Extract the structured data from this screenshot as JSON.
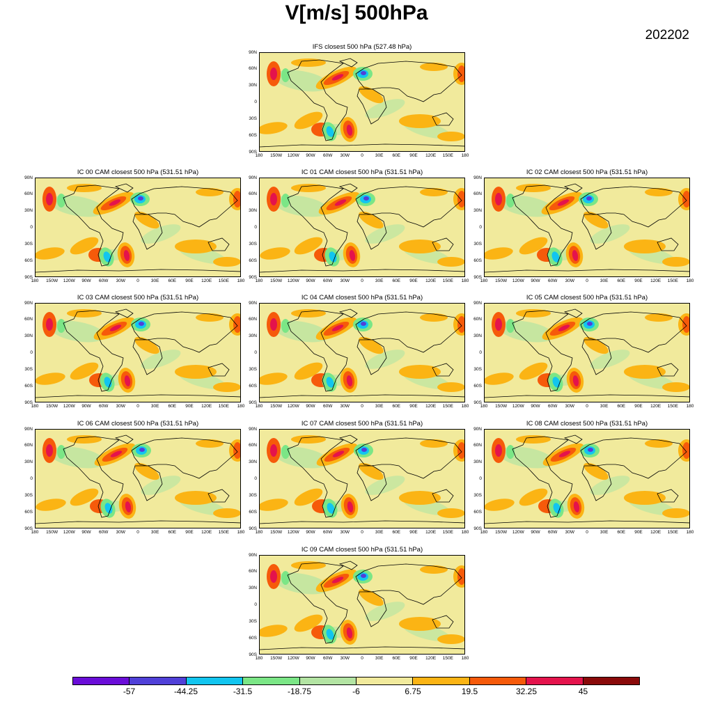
{
  "title": "V[m/s] 500hPa",
  "date": "202202",
  "panels": [
    {
      "id": "ifs",
      "title": "IFS closest 500 hPa (527.48 hPa)"
    },
    {
      "id": "ic00",
      "title": "IC 00 CAM closest 500 hPa (531.51 hPa)"
    },
    {
      "id": "ic01",
      "title": "IC 01 CAM closest 500 hPa (531.51 hPa)"
    },
    {
      "id": "ic02",
      "title": "IC 02 CAM closest 500 hPa (531.51 hPa)"
    },
    {
      "id": "ic03",
      "title": "IC 03 CAM closest 500 hPa (531.51 hPa)"
    },
    {
      "id": "ic04",
      "title": "IC 04 CAM closest 500 hPa (531.51 hPa)"
    },
    {
      "id": "ic05",
      "title": "IC 05 CAM closest 500 hPa (531.51 hPa)"
    },
    {
      "id": "ic06",
      "title": "IC 06 CAM closest 500 hPa (531.51 hPa)"
    },
    {
      "id": "ic07",
      "title": "IC 07 CAM closest 500 hPa (531.51 hPa)"
    },
    {
      "id": "ic08",
      "title": "IC 08 CAM closest 500 hPa (531.51 hPa)"
    },
    {
      "id": "ic09",
      "title": "IC 09 CAM closest 500 hPa (531.51 hPa)"
    }
  ],
  "lat_ticks": [
    "90N",
    "60N",
    "30N",
    "0",
    "30S",
    "60S",
    "90S"
  ],
  "lon_ticks": [
    "180",
    "150W",
    "120W",
    "90W",
    "60W",
    "30W",
    "0",
    "30E",
    "60E",
    "90E",
    "120E",
    "150E",
    "180"
  ],
  "colorbar": {
    "colors": [
      "#6a0dd8",
      "#5040d8",
      "#12c5ef",
      "#7be686",
      "#b3e4a3",
      "#f1ea9c",
      "#fbb414",
      "#f65a0a",
      "#e4134c",
      "#8a0a0a"
    ],
    "labels": [
      "-57",
      "-44.25",
      "-31.5",
      "-18.75",
      "-6",
      "6.75",
      "19.5",
      "32.25",
      "45"
    ]
  }
}
